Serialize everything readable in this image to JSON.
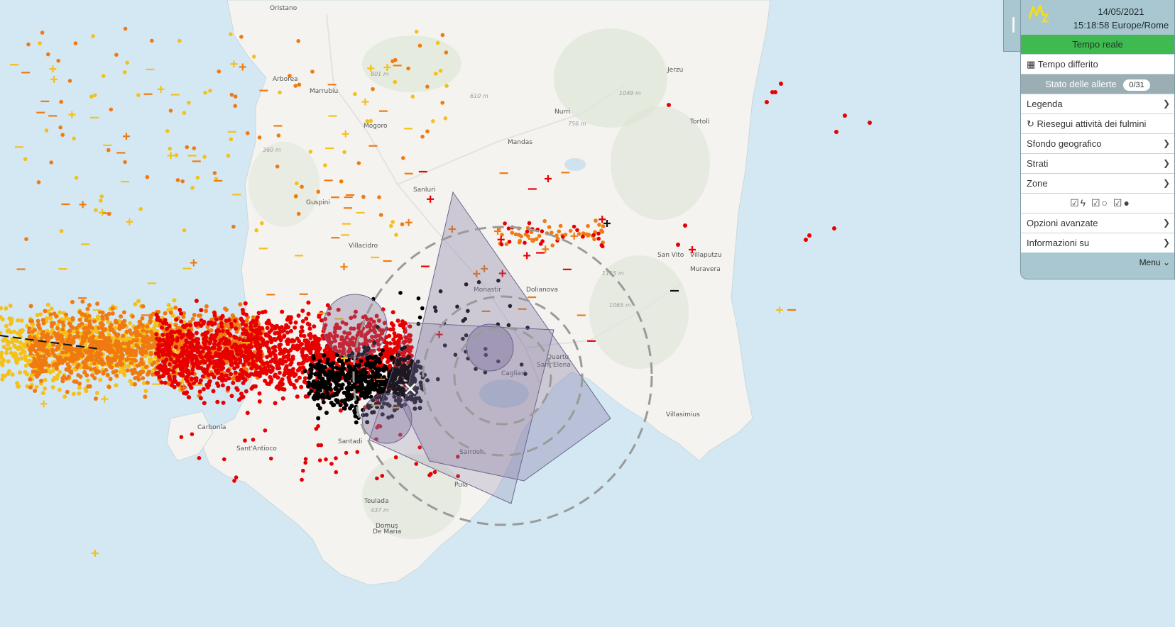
{
  "map": {
    "places": [
      {
        "name": "Oristano"
      },
      {
        "name": "Arborea"
      },
      {
        "name": "Marrubiu"
      },
      {
        "name": "Mogoro"
      },
      {
        "name": "Guspini"
      },
      {
        "name": "Sanluri"
      },
      {
        "name": "Villacidro"
      },
      {
        "name": "Nurri"
      },
      {
        "name": "Mandas"
      },
      {
        "name": "Jerzu"
      },
      {
        "name": "Tortolì"
      },
      {
        "name": "San Vito"
      },
      {
        "name": "Villaputzu"
      },
      {
        "name": "Muravera"
      },
      {
        "name": "Dolianova"
      },
      {
        "name": "Monastir"
      },
      {
        "name": "Quartu"
      },
      {
        "name": "Sant'Elena"
      },
      {
        "name": "Cagliari"
      },
      {
        "name": "Villasimius"
      },
      {
        "name": "Santadi"
      },
      {
        "name": "Sarroch"
      },
      {
        "name": "Pula"
      },
      {
        "name": "Teulada"
      },
      {
        "name": "Domus"
      },
      {
        "name": "De Maria"
      },
      {
        "name": "Sant'Antioco"
      },
      {
        "name": "Carbonia"
      }
    ],
    "elevations": [
      "801 m",
      "610 m",
      "1049 m",
      "756 m",
      "360 m",
      "1065 m",
      "437 m",
      "1115 m"
    ]
  },
  "panel": {
    "date": "14/05/2021",
    "time": "15:18:58 Europe/Rome",
    "realtime_label": "Tempo reale",
    "deferred_label": "Tempo differito",
    "alerts_label": "Stato delle allerte",
    "alerts_count": "0/31",
    "legend_label": "Legenda",
    "rerun_label": "Riesegui attività dei fulmini",
    "background_label": "Sfondo geografico",
    "layers_label": "Strati",
    "zones_label": "Zone",
    "advanced_label": "Opzioni avanzate",
    "info_label": "Informazioni su",
    "menu_label": "Menu"
  },
  "colors": {
    "sea": "#d4e8f3",
    "land": "#f4f3ef",
    "recent": "#000000",
    "mid": "#e60000",
    "old": "#f07a10",
    "oldest": "#f5c018",
    "zone": "#7b6f9c",
    "realtime": "#3fba50"
  }
}
